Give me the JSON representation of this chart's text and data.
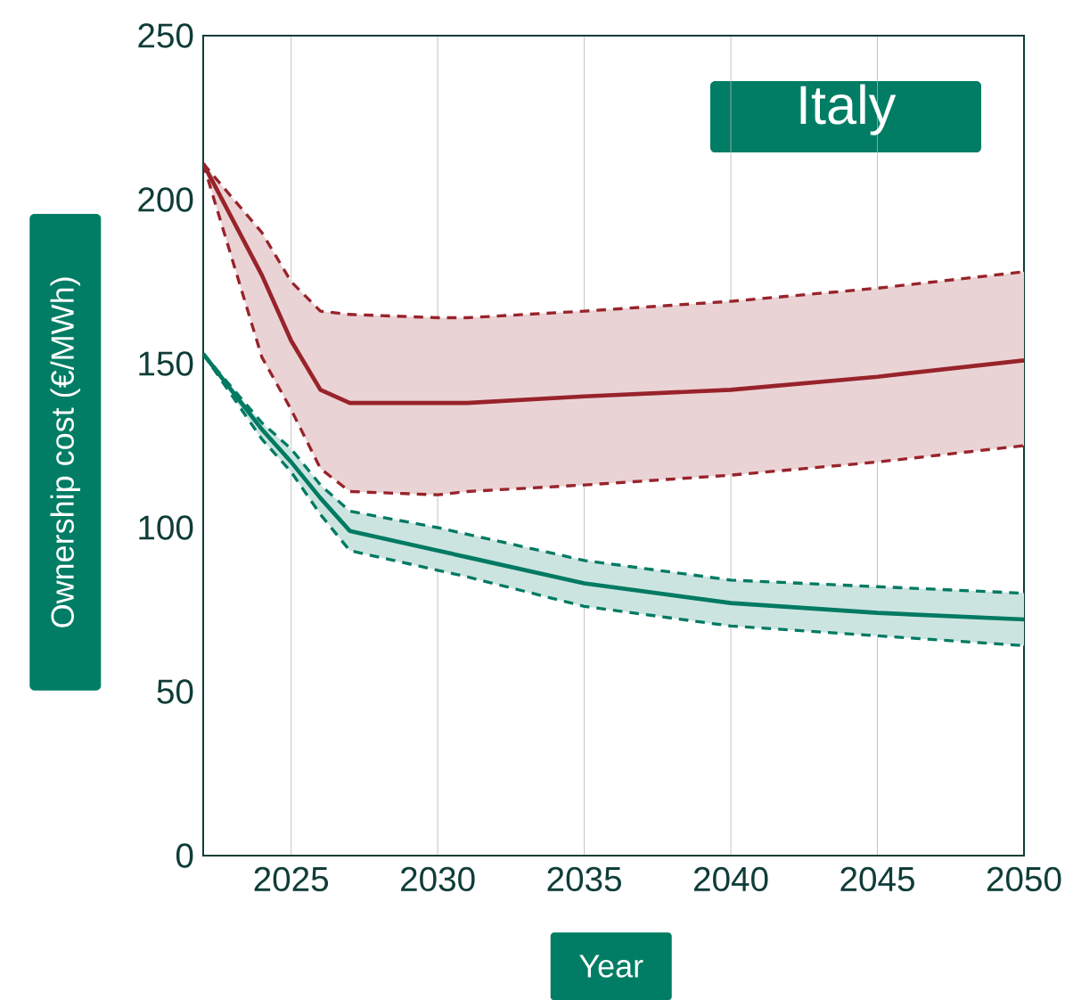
{
  "chart_data": {
    "type": "line",
    "title": "Italy",
    "xlabel": "Year",
    "ylabel": "Ownership cost (€/MWh)",
    "x": [
      2022,
      2024,
      2025,
      2026,
      2027,
      2030,
      2031,
      2035,
      2040,
      2045,
      2050
    ],
    "series": [
      {
        "color": "#98232b",
        "values": [
          211,
          177,
          157,
          142,
          138,
          138,
          138,
          140,
          142,
          146,
          151
        ],
        "upper": [
          211,
          190,
          175,
          166,
          165,
          164,
          164,
          166,
          169,
          173,
          178
        ],
        "lower": [
          211,
          152,
          136,
          118,
          111,
          110,
          111,
          113,
          116,
          120,
          125
        ]
      },
      {
        "color": "#007a62",
        "values": [
          153,
          130,
          120,
          109,
          99,
          93,
          91,
          83,
          77,
          74,
          72
        ],
        "upper": [
          153,
          132,
          124,
          113,
          105,
          100,
          98,
          90,
          84,
          82,
          80
        ],
        "lower": [
          153,
          127,
          117,
          104,
          93,
          87,
          85,
          76,
          70,
          67,
          64
        ]
      },
      {
        "color": "#98232b",
        "line_style": "dashed",
        "values": [
          211,
          190,
          175,
          166,
          165,
          164,
          164,
          166,
          169,
          173,
          178
        ]
      },
      {
        "color": "#98232b",
        "line_style": "dashed",
        "values": [
          211,
          152,
          136,
          118,
          111,
          110,
          111,
          113,
          116,
          120,
          125
        ]
      },
      {
        "color": "#007a62",
        "line_style": "dashed",
        "values": [
          153,
          132,
          124,
          113,
          105,
          100,
          98,
          90,
          84,
          82,
          80
        ]
      },
      {
        "color": "#007a62",
        "line_style": "dashed",
        "values": [
          153,
          127,
          117,
          104,
          93,
          87,
          85,
          76,
          70,
          67,
          64
        ]
      }
    ],
    "xlim": [
      2022,
      2050
    ],
    "ylim": [
      0,
      250
    ],
    "xticks": [
      2025,
      2030,
      2035,
      2040,
      2045,
      2050
    ],
    "yticks": [
      0,
      50,
      100,
      150,
      200,
      250
    ],
    "grid": "x"
  }
}
